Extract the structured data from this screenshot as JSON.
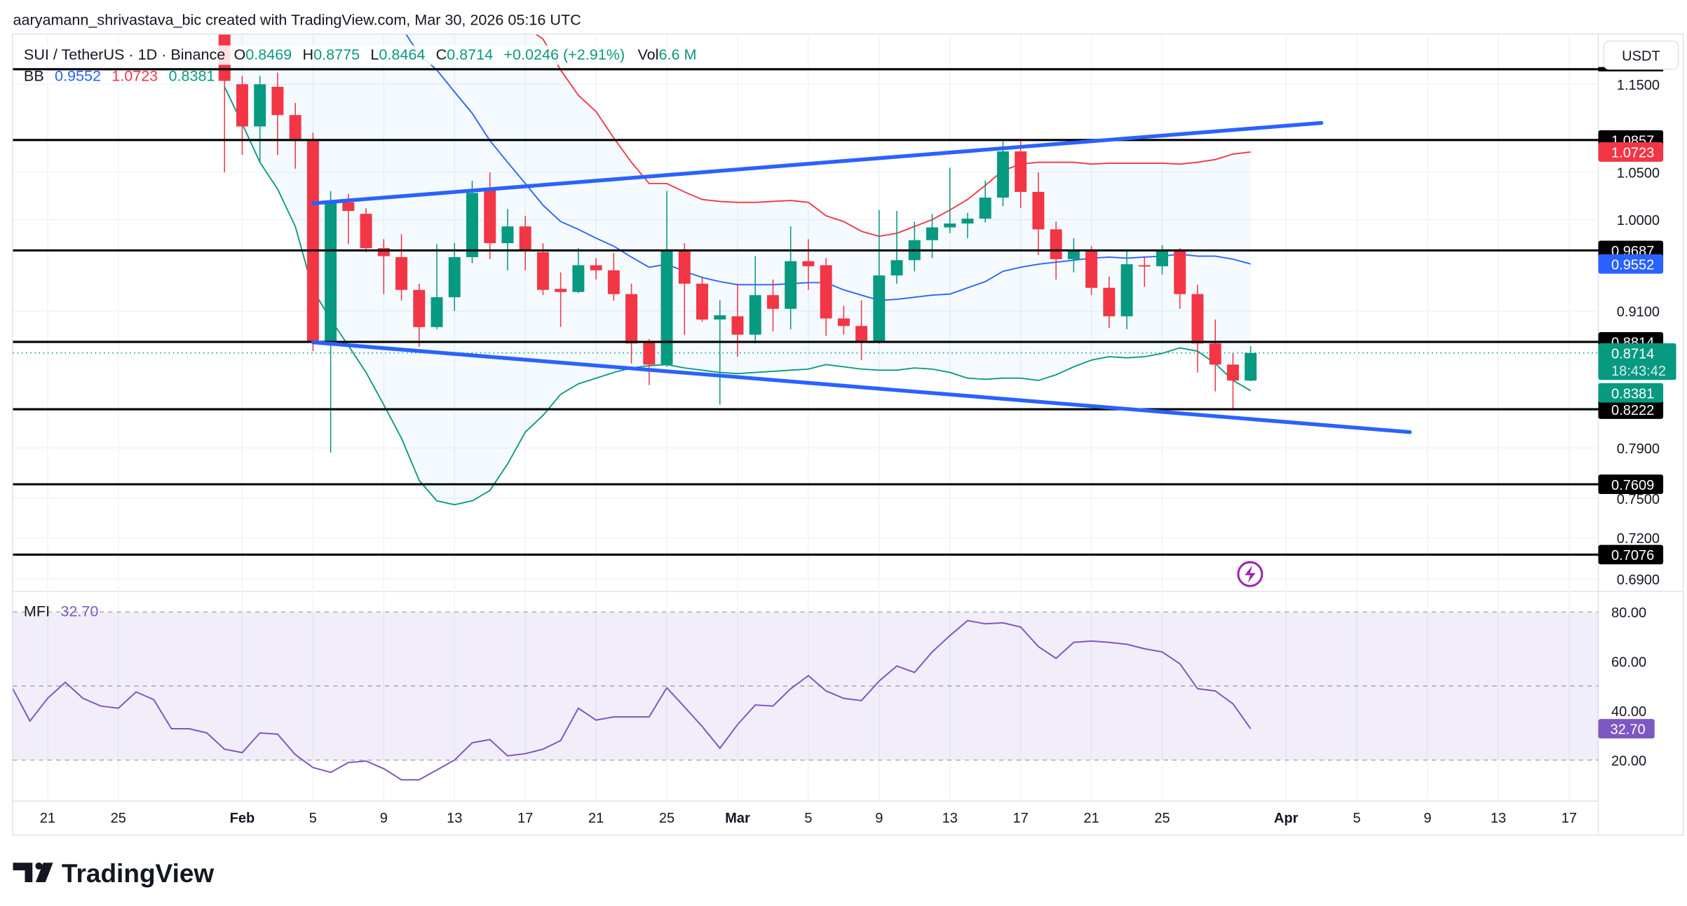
{
  "header": {
    "attribution": "aaryamann_shrivastava_bic created with TradingView.com, Mar 30, 2026 05:16 UTC"
  },
  "legend": {
    "symbol": "SUI / TetherUS · 1D · Binance",
    "o_label": "O",
    "o_value": "0.8469",
    "h_label": "H",
    "h_value": "0.8775",
    "l_label": "L",
    "l_value": "0.8464",
    "c_label": "C",
    "c_value": "0.8714",
    "change": "+0.0246 (+2.91%)",
    "vol_label": "Vol",
    "vol_value": "6.6 M",
    "bb_label": "BB",
    "bb_mid": "0.9552",
    "bb_upper": "1.0723",
    "bb_lower": "0.8381"
  },
  "currency_button": "USDT",
  "mfi_legend": {
    "label": "MFI",
    "value": "32.70"
  },
  "logo_text": "TradingView",
  "colors": {
    "up": "#089981",
    "down": "#f23645",
    "bb_upper": "#f23645",
    "bb_mid": "#2962ff",
    "bb_lower": "#089981",
    "trendline": "#2962ff",
    "mfi": "#7e57c2",
    "level": "#000000"
  },
  "chart_data": [
    {
      "type": "candlestick",
      "price_scale": "log",
      "ylim": [
        0.682,
        1.2105
      ],
      "xlim": [
        "2026-01-19",
        "2026-04-18"
      ],
      "grid": true,
      "y_ticks": [
        "1.1500",
        "1.0500",
        "1.0000",
        "0.9100",
        "0.7900",
        "0.7500",
        "0.7200",
        "0.6900"
      ],
      "x_ticks": [
        {
          "date": "2026-01-21",
          "label": "21"
        },
        {
          "date": "2026-01-25",
          "label": "25"
        },
        {
          "date": "2026-02-01",
          "label": "Feb",
          "bold": true
        },
        {
          "date": "2026-02-05",
          "label": "5"
        },
        {
          "date": "2026-02-09",
          "label": "9"
        },
        {
          "date": "2026-02-13",
          "label": "13"
        },
        {
          "date": "2026-02-17",
          "label": "17"
        },
        {
          "date": "2026-02-21",
          "label": "21"
        },
        {
          "date": "2026-02-25",
          "label": "25"
        },
        {
          "date": "2026-03-01",
          "label": "Mar",
          "bold": true
        },
        {
          "date": "2026-03-05",
          "label": "5"
        },
        {
          "date": "2026-03-09",
          "label": "9"
        },
        {
          "date": "2026-03-13",
          "label": "13"
        },
        {
          "date": "2026-03-17",
          "label": "17"
        },
        {
          "date": "2026-03-21",
          "label": "21"
        },
        {
          "date": "2026-03-25",
          "label": "25"
        },
        {
          "date": "2026-04-01",
          "label": "Apr",
          "bold": true
        },
        {
          "date": "2026-04-05",
          "label": "5"
        },
        {
          "date": "2026-04-09",
          "label": "9"
        },
        {
          "date": "2026-04-13",
          "label": "13"
        },
        {
          "date": "2026-04-17",
          "label": "17"
        }
      ],
      "columns": [
        "date",
        "open",
        "high",
        "low",
        "close",
        "bb_upper",
        "bb_mid",
        "bb_lower"
      ],
      "rows": [
        [
          "2026-01-31",
          1.22,
          1.23,
          1.05,
          1.154,
          1.75,
          1.45,
          1.147
        ],
        [
          "2026-02-01",
          1.15,
          1.16,
          1.069,
          1.101,
          1.74,
          1.43,
          1.104
        ],
        [
          "2026-02-02",
          1.101,
          1.16,
          1.062,
          1.15,
          1.73,
          1.4,
          1.061
        ],
        [
          "2026-02-03",
          1.147,
          1.164,
          1.069,
          1.114,
          1.72,
          1.37,
          1.032
        ],
        [
          "2026-02-04",
          1.114,
          1.128,
          1.054,
          1.087,
          1.7,
          1.34,
          0.993
        ],
        [
          "2026-02-05",
          1.0857,
          1.094,
          0.873,
          0.881,
          1.68,
          1.31,
          0.93
        ],
        [
          "2026-02-06",
          0.881,
          1.03,
          0.786,
          1.018,
          1.64,
          1.29,
          0.902
        ],
        [
          "2026-02-07",
          1.018,
          1.027,
          0.975,
          1.009,
          1.6,
          1.27,
          0.878
        ],
        [
          "2026-02-08",
          1.006,
          1.012,
          0.967,
          0.971,
          1.56,
          1.25,
          0.854
        ],
        [
          "2026-02-09",
          0.971,
          0.98,
          0.926,
          0.963,
          1.52,
          1.235,
          0.826
        ],
        [
          "2026-02-10",
          0.962,
          0.985,
          0.92,
          0.93,
          1.48,
          1.22,
          0.798
        ],
        [
          "2026-02-11",
          0.93,
          0.936,
          0.877,
          0.895,
          1.44,
          1.186,
          0.764
        ],
        [
          "2026-02-12",
          0.895,
          0.975,
          0.893,
          0.923,
          1.4,
          1.167,
          0.748
        ],
        [
          "2026-02-13",
          0.923,
          0.976,
          0.91,
          0.962,
          1.36,
          1.141,
          0.745
        ],
        [
          "2026-02-14",
          0.962,
          1.041,
          0.956,
          1.028,
          1.32,
          1.116,
          0.748
        ],
        [
          "2026-02-15",
          1.031,
          1.05,
          0.96,
          0.976,
          1.28,
          1.085,
          0.756
        ],
        [
          "2026-02-16",
          0.976,
          1.011,
          0.949,
          0.993,
          1.25,
          1.061,
          0.777
        ],
        [
          "2026-02-17",
          0.993,
          1.004,
          0.949,
          0.969,
          1.22,
          1.038,
          0.803
        ],
        [
          "2026-02-18",
          0.967,
          0.976,
          0.925,
          0.93,
          1.205,
          1.015,
          0.817
        ],
        [
          "2026-02-19",
          0.931,
          0.947,
          0.895,
          0.928,
          1.167,
          0.998,
          0.835
        ],
        [
          "2026-02-20",
          0.928,
          0.971,
          0.927,
          0.954,
          1.137,
          0.99,
          0.844
        ],
        [
          "2026-02-21",
          0.954,
          0.961,
          0.94,
          0.949,
          1.118,
          0.981,
          0.849
        ],
        [
          "2026-02-22",
          0.949,
          0.966,
          0.92,
          0.926,
          1.088,
          0.973,
          0.854
        ],
        [
          "2026-02-23",
          0.926,
          0.936,
          0.862,
          0.88,
          1.061,
          0.962,
          0.858
        ],
        [
          "2026-02-24",
          0.881,
          0.884,
          0.843,
          0.861,
          1.038,
          0.952,
          0.86
        ],
        [
          "2026-02-25",
          0.861,
          1.03,
          0.859,
          0.969,
          1.038,
          0.955,
          0.861
        ],
        [
          "2026-02-26",
          0.969,
          0.976,
          0.888,
          0.936,
          1.029,
          0.948,
          0.858
        ],
        [
          "2026-02-27",
          0.936,
          0.943,
          0.9,
          0.902,
          1.021,
          0.942,
          0.856
        ],
        [
          "2026-02-28",
          0.902,
          0.92,
          0.826,
          0.906,
          1.019,
          0.938,
          0.854
        ],
        [
          "2026-03-01",
          0.905,
          0.936,
          0.868,
          0.888,
          1.018,
          0.935,
          0.853
        ],
        [
          "2026-03-02",
          0.888,
          0.963,
          0.88,
          0.925,
          1.018,
          0.935,
          0.854
        ],
        [
          "2026-03-03",
          0.925,
          0.94,
          0.891,
          0.912,
          1.019,
          0.935,
          0.855
        ],
        [
          "2026-03-04",
          0.912,
          0.993,
          0.893,
          0.958,
          1.02,
          0.936,
          0.856
        ],
        [
          "2026-03-05",
          0.958,
          0.98,
          0.93,
          0.953,
          1.018,
          0.937,
          0.857
        ],
        [
          "2026-03-06",
          0.954,
          0.961,
          0.887,
          0.903,
          1.004,
          0.937,
          0.861
        ],
        [
          "2026-03-07",
          0.903,
          0.915,
          0.888,
          0.896,
          0.998,
          0.93,
          0.859
        ],
        [
          "2026-03-08",
          0.896,
          0.92,
          0.865,
          0.881,
          0.988,
          0.925,
          0.857
        ],
        [
          "2026-03-09",
          0.881,
          1.01,
          0.88,
          0.944,
          0.983,
          0.92,
          0.856
        ],
        [
          "2026-03-10",
          0.944,
          1.009,
          0.936,
          0.959,
          0.986,
          0.921,
          0.856
        ],
        [
          "2026-03-11",
          0.959,
          0.998,
          0.948,
          0.979,
          0.993,
          0.923,
          0.858
        ],
        [
          "2026-03-12",
          0.979,
          1.006,
          0.961,
          0.992,
          1.0,
          0.925,
          0.857
        ],
        [
          "2026-03-13",
          0.992,
          1.055,
          0.986,
          0.996,
          1.01,
          0.926,
          0.854
        ],
        [
          "2026-03-14",
          0.996,
          1.007,
          0.981,
          1.001,
          1.021,
          0.932,
          0.849
        ],
        [
          "2026-03-15",
          1.001,
          1.041,
          0.997,
          1.023,
          1.036,
          0.938,
          0.848
        ],
        [
          "2026-03-16",
          1.023,
          1.084,
          1.014,
          1.073,
          1.052,
          0.948,
          0.849
        ],
        [
          "2026-03-17",
          1.073,
          1.086,
          1.012,
          1.029,
          1.059,
          0.952,
          0.849
        ],
        [
          "2026-03-18",
          1.029,
          1.05,
          0.964,
          0.99,
          1.061,
          0.955,
          0.847
        ],
        [
          "2026-03-19",
          0.99,
          0.998,
          0.94,
          0.96,
          1.061,
          0.957,
          0.852
        ],
        [
          "2026-03-20",
          0.96,
          0.981,
          0.947,
          0.969,
          1.061,
          0.959,
          0.859
        ],
        [
          "2026-03-21",
          0.969,
          0.973,
          0.925,
          0.932,
          1.059,
          0.961,
          0.865
        ],
        [
          "2026-03-22",
          0.932,
          0.943,
          0.894,
          0.905,
          1.06,
          0.962,
          0.868
        ],
        [
          "2026-03-23",
          0.905,
          0.969,
          0.893,
          0.955,
          1.06,
          0.961,
          0.867
        ],
        [
          "2026-03-24",
          0.954,
          0.963,
          0.933,
          0.953,
          1.06,
          0.962,
          0.868
        ],
        [
          "2026-03-25",
          0.953,
          0.974,
          0.945,
          0.969,
          1.06,
          0.963,
          0.871
        ],
        [
          "2026-03-26",
          0.969,
          0.971,
          0.912,
          0.926,
          1.059,
          0.965,
          0.876
        ],
        [
          "2026-03-27",
          0.926,
          0.935,
          0.854,
          0.88,
          1.061,
          0.963,
          0.873
        ],
        [
          "2026-03-28",
          0.88,
          0.902,
          0.8375,
          0.861,
          1.064,
          0.963,
          0.862
        ],
        [
          "2026-03-29",
          0.861,
          0.871,
          0.821,
          0.8469,
          1.07,
          0.96,
          0.847
        ],
        [
          "2026-03-30",
          0.8469,
          0.8775,
          0.8464,
          0.8714,
          1.0723,
          0.9552,
          0.8381
        ]
      ],
      "horizontal_levels": [
        {
          "price": 1.168,
          "label": ""
        },
        {
          "price": 1.0857,
          "label": "1.0857"
        },
        {
          "price": 0.9687,
          "label": "0.9687"
        },
        {
          "price": 0.8814,
          "label": "0.8814"
        },
        {
          "price": 0.8222,
          "label": "0.8222"
        },
        {
          "price": 0.7609,
          "label": "0.7609"
        },
        {
          "price": 0.7076,
          "label": "0.7076"
        }
      ],
      "trendlines": [
        {
          "from": [
            "2026-02-05",
            1.017
          ],
          "to": [
            "2026-04-03",
            1.105
          ]
        },
        {
          "from": [
            "2026-02-05",
            0.881
          ],
          "to": [
            "2026-04-08",
            0.803
          ]
        }
      ],
      "price_labels": [
        {
          "price": 1.0723,
          "label": "1.0723",
          "color": "#f23645"
        },
        {
          "price": 0.9552,
          "label": "0.9552",
          "color": "#2962ff"
        },
        {
          "price": 0.8381,
          "label": "0.8381",
          "color": "#089981"
        }
      ],
      "last_price": {
        "price": 0.8714,
        "label": "0.8714",
        "countdown": "18:43:42",
        "color": "#089981"
      }
    },
    {
      "type": "line",
      "name": "MFI",
      "ylim": [
        3.8,
        87.9
      ],
      "y_ticks": [
        "80.00",
        "60.00",
        "40.00",
        "20.00"
      ],
      "bands": {
        "upper": 80,
        "middle": 50,
        "lower": 20
      },
      "last_label": "32.70",
      "points": [
        [
          "2026-01-19",
          49.3
        ],
        [
          "2026-01-20",
          35.8
        ],
        [
          "2026-01-21",
          45
        ],
        [
          "2026-01-22",
          51.5
        ],
        [
          "2026-01-23",
          45
        ],
        [
          "2026-01-24",
          41.9
        ],
        [
          "2026-01-25",
          41
        ],
        [
          "2026-01-26",
          47.6
        ],
        [
          "2026-01-27",
          44.5
        ],
        [
          "2026-01-28",
          32.7
        ],
        [
          "2026-01-29",
          32.7
        ],
        [
          "2026-01-30",
          31
        ],
        [
          "2026-01-31",
          24.4
        ],
        [
          "2026-02-01",
          23
        ],
        [
          "2026-02-02",
          31
        ],
        [
          "2026-02-03",
          30.5
        ],
        [
          "2026-02-04",
          22.2
        ],
        [
          "2026-02-05",
          17
        ],
        [
          "2026-02-06",
          15
        ],
        [
          "2026-02-07",
          19
        ],
        [
          "2026-02-08",
          19.6
        ],
        [
          "2026-02-09",
          16.5
        ],
        [
          "2026-02-10",
          12
        ],
        [
          "2026-02-11",
          12
        ],
        [
          "2026-02-12",
          16
        ],
        [
          "2026-02-13",
          20
        ],
        [
          "2026-02-14",
          27
        ],
        [
          "2026-02-15",
          28.3
        ],
        [
          "2026-02-16",
          21.7
        ],
        [
          "2026-02-17",
          22.6
        ],
        [
          "2026-02-18",
          24.4
        ],
        [
          "2026-02-19",
          27.9
        ],
        [
          "2026-02-20",
          41
        ],
        [
          "2026-02-21",
          36.2
        ],
        [
          "2026-02-22",
          37.5
        ],
        [
          "2026-02-23",
          37.5
        ],
        [
          "2026-02-24",
          37.5
        ],
        [
          "2026-02-25",
          49.3
        ],
        [
          "2026-02-26",
          41.5
        ],
        [
          "2026-02-27",
          33.6
        ],
        [
          "2026-02-28",
          24.8
        ],
        [
          "2026-03-01",
          34.4
        ],
        [
          "2026-03-02",
          42.3
        ],
        [
          "2026-03-03",
          41.9
        ],
        [
          "2026-03-04",
          48.9
        ],
        [
          "2026-03-05",
          54.2
        ],
        [
          "2026-03-06",
          48
        ],
        [
          "2026-03-07",
          45
        ],
        [
          "2026-03-08",
          44.1
        ],
        [
          "2026-03-09",
          52
        ],
        [
          "2026-03-10",
          58.1
        ],
        [
          "2026-03-11",
          55.5
        ],
        [
          "2026-03-12",
          63.8
        ],
        [
          "2026-03-13",
          70.4
        ],
        [
          "2026-03-14",
          76.5
        ],
        [
          "2026-03-15",
          75.2
        ],
        [
          "2026-03-16",
          75.6
        ],
        [
          "2026-03-17",
          73.9
        ],
        [
          "2026-03-18",
          66
        ],
        [
          "2026-03-19",
          61.2
        ],
        [
          "2026-03-20",
          67.7
        ],
        [
          "2026-03-21",
          68.2
        ],
        [
          "2026-03-22",
          67.7
        ],
        [
          "2026-03-23",
          66.9
        ],
        [
          "2026-03-24",
          65.1
        ],
        [
          "2026-03-25",
          63.8
        ],
        [
          "2026-03-26",
          59
        ],
        [
          "2026-03-27",
          48.9
        ],
        [
          "2026-03-28",
          48
        ],
        [
          "2026-03-29",
          42.8
        ],
        [
          "2026-03-30",
          32.7
        ]
      ]
    }
  ]
}
